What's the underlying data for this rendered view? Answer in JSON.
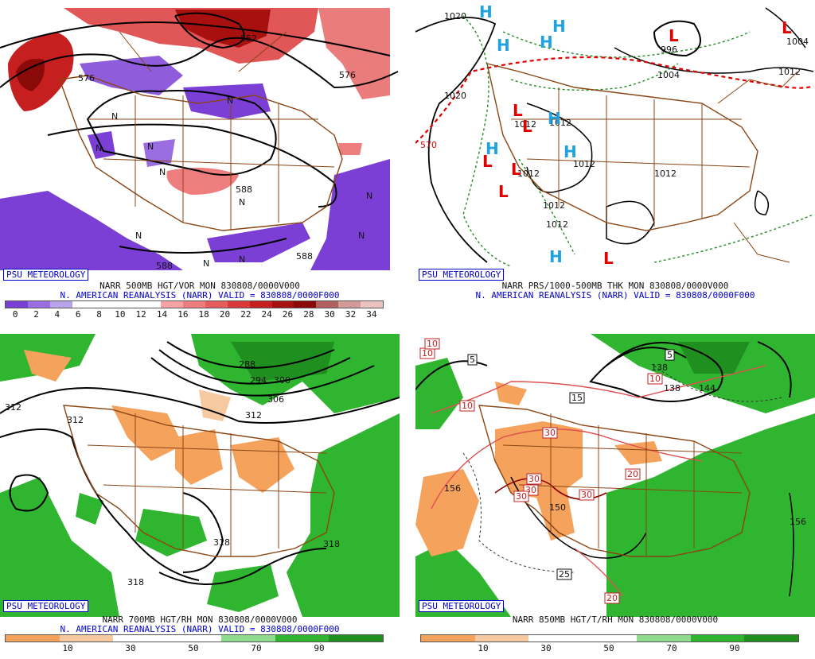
{
  "logo": "PSU METEOROLOGY",
  "panels": {
    "p500": {
      "title": "NARR 500MB HGT/VOR MON 830808/0000V000",
      "subtitle": "N. AMERICAN REANALYSIS (NARR) VALID = 830808/0000F000",
      "colorbar": {
        "ticks": [
          "0",
          "2",
          "4",
          "6",
          "8",
          "10",
          "12",
          "14",
          "16",
          "18",
          "20",
          "22",
          "24",
          "26",
          "28",
          "30",
          "32",
          "34"
        ],
        "colors": [
          "#7b3fd6",
          "#9a6ee0",
          "#b7a4ea",
          "#ffffff",
          "#ffffff",
          "#ffffff",
          "#ffffff",
          "#f5a3a3",
          "#ee7d7d",
          "#e65b5b",
          "#dc3a3a",
          "#c51f1f",
          "#a81010",
          "#8a0a0a",
          "#b06060",
          "#d39a9a",
          "#ecc3c3"
        ]
      },
      "contour_labels": [
        "552",
        "576",
        "576",
        "588",
        "588",
        "588"
      ],
      "symbols": [
        "N",
        "N",
        "N",
        "N",
        "N",
        "N",
        "N",
        "N",
        "N",
        "N",
        "N"
      ]
    },
    "prs": {
      "title": "NARR PRS/1000-500MB THK MON 830808/0000V000",
      "subtitle": "N. AMERICAN REANALYSIS (NARR) VALID = 830808/0000F000",
      "contour_labels": [
        "1020",
        "1020",
        "996",
        "1004",
        "1012",
        "1004",
        "1012",
        "1012",
        "1012",
        "1012",
        "1012",
        "1012",
        "1012",
        "570"
      ],
      "highs": [
        "H",
        "H",
        "H",
        "H",
        "H",
        "H",
        "H"
      ],
      "lows": [
        "L",
        "L",
        "L",
        "L",
        "L",
        "L",
        "L",
        "L"
      ]
    },
    "p700": {
      "title": "NARR 700MB HGT/RH MON 830808/0000V000",
      "subtitle": "N. AMERICAN REANALYSIS (NARR) VALID = 830808/0000F000",
      "colorbar": {
        "ticks": [
          "10",
          "30",
          "50",
          "70",
          "90"
        ],
        "colors": [
          "#f5a25d",
          "#f7c9a0",
          "#ffffff",
          "#ffffff",
          "#8fdc8f",
          "#2fb52f",
          "#1f8f1f"
        ]
      },
      "contour_labels": [
        "312",
        "312",
        "288",
        "294",
        "300",
        "306",
        "312",
        "318",
        "318",
        "318"
      ]
    },
    "p850": {
      "title": "NARR 850MB HGT/T/RH MON 830808/0000V000",
      "colorbar": {
        "ticks": [
          "10",
          "30",
          "50",
          "70",
          "90"
        ],
        "colors": [
          "#f5a25d",
          "#f7c9a0",
          "#ffffff",
          "#ffffff",
          "#8fdc8f",
          "#2fb52f",
          "#1f8f1f"
        ]
      },
      "height_labels": [
        "156",
        "150",
        "156",
        "138",
        "144",
        "138"
      ],
      "temp_labels": [
        "10",
        "10",
        "10",
        "10",
        "30",
        "30",
        "30",
        "30",
        "30",
        "20",
        "20"
      ],
      "dewpoint_labels": [
        "5",
        "5",
        "15",
        "25"
      ]
    }
  }
}
